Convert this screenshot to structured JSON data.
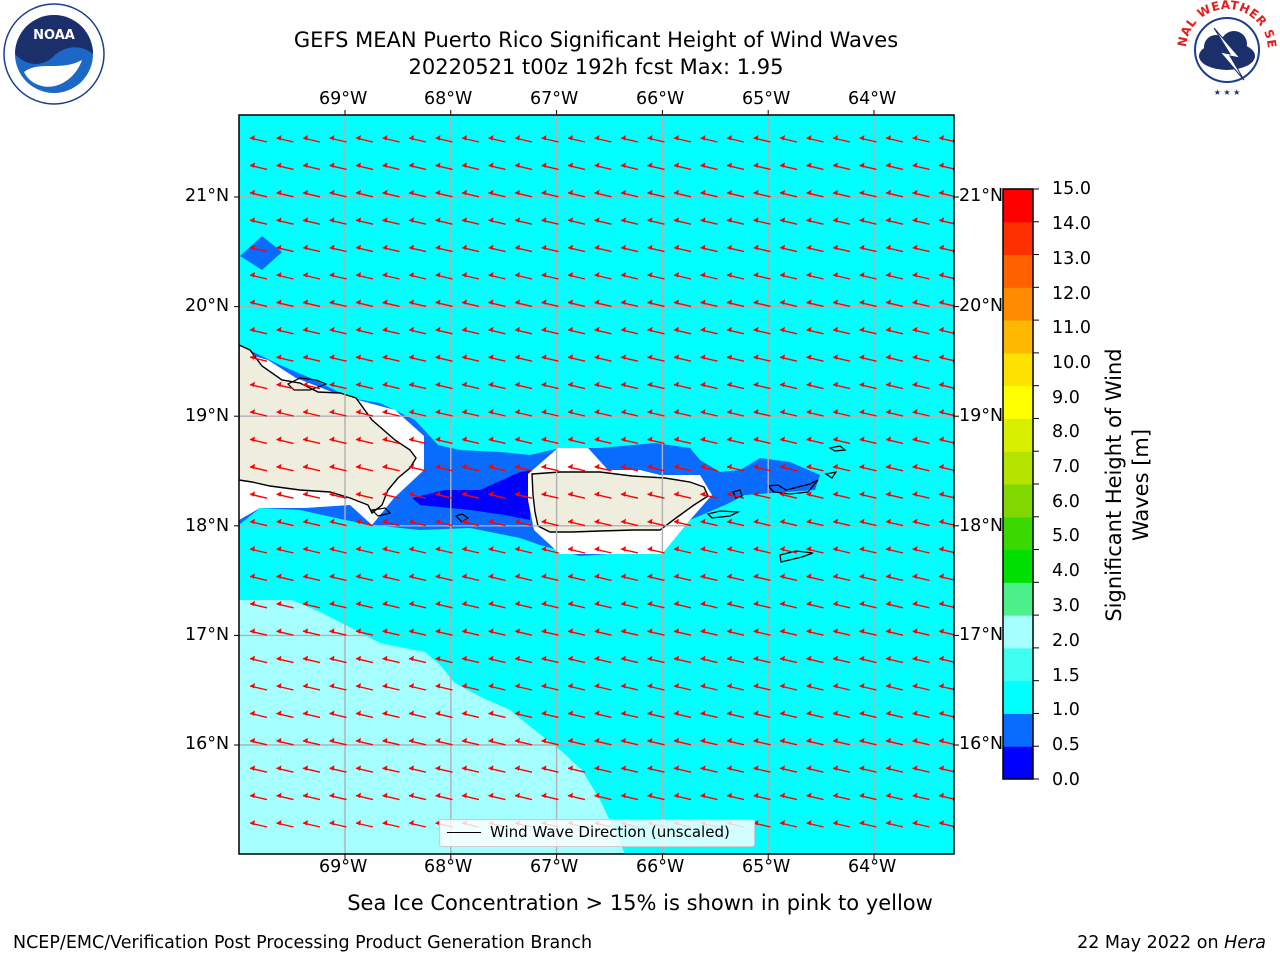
{
  "title_line1": "GEFS MEAN Puerto Rico Significant Height of Wind Waves",
  "title_line2": "20220521 t00z 192h fcst   Max: 1.95",
  "subtitle": "Sea Ice Concentration > 15% is shown in pink to yellow",
  "footer_left": "NCEP/EMC/Verification Post Processing Product Generation Branch",
  "footer_right_date": "22 May 2022 on",
  "footer_right_host": "Hera",
  "lon_labels": [
    "69°W",
    "68°W",
    "67°W",
    "66°W",
    "65°W",
    "64°W"
  ],
  "lat_labels": [
    "21°N",
    "20°N",
    "19°N",
    "18°N",
    "17°N",
    "16°N"
  ],
  "legend": {
    "label": "Wind Wave Direction (unscaled)",
    "line_color": "#000000"
  },
  "colorbar": {
    "label": "Significant Height of Wind Waves [m]",
    "label_lines": [
      "Significant Height of Wind",
      "Waves [m]"
    ],
    "ticks": [
      "15.0",
      "14.0",
      "13.0",
      "12.0",
      "11.0",
      "10.0",
      "9.0",
      "8.0",
      "7.0",
      "6.0",
      "5.0",
      "4.0",
      "3.0",
      "2.0",
      "1.5",
      "1.0",
      "0.5",
      "0.0"
    ],
    "colors_bottom_to_top": [
      "#0000ff",
      "#0a6cff",
      "#00ffff",
      "#3ffff2",
      "#a5ffff",
      "#4cf08a",
      "#00e000",
      "#38d800",
      "#80d800",
      "#b4e400",
      "#d8f000",
      "#ffff00",
      "#ffe100",
      "#ffb800",
      "#ff8c00",
      "#ff6000",
      "#ff3000",
      "#ff0000"
    ]
  },
  "colors": {
    "ocean_1_1p5": "#00ffff",
    "band_0p5_1": "#0a6cff",
    "band_0_0p5": "#0000ff",
    "band_1p5_2": "#3ffff2",
    "band_2_3": "#a5ffff",
    "land": "#eeedde",
    "no_data": "#ffffff",
    "arrow": "#ff0000",
    "gridline": "#b0b0b0"
  },
  "logos": {
    "left": "NOAA",
    "right": "NATIONAL WEATHER SERVICE"
  }
}
